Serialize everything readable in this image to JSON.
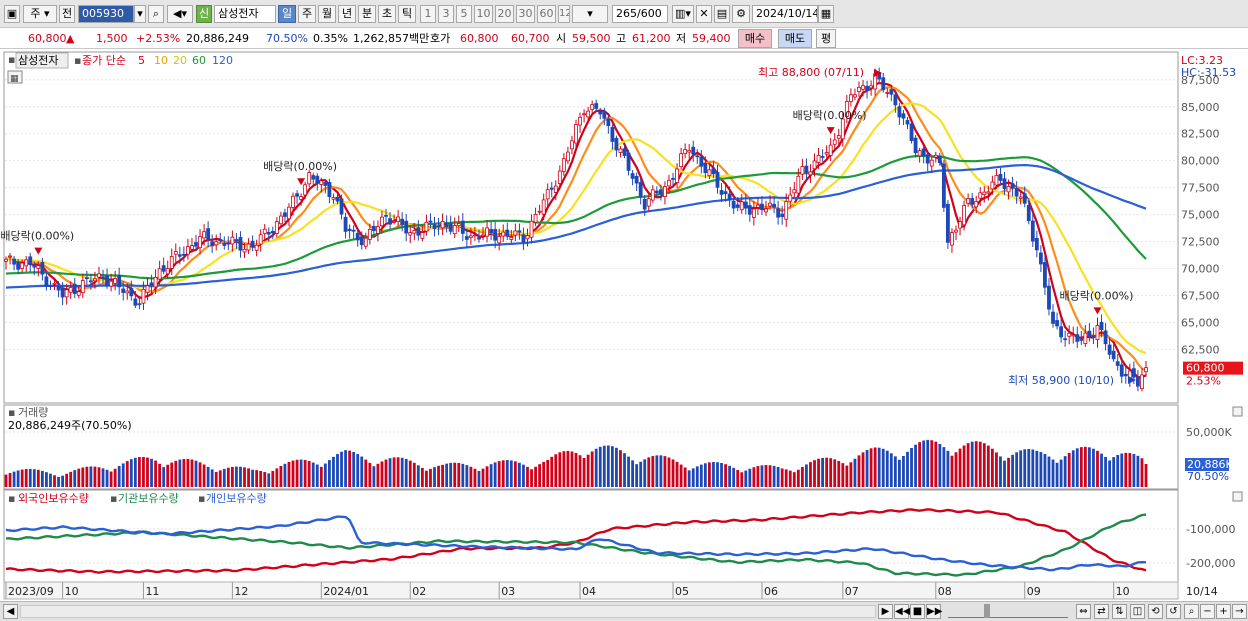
{
  "toolbar": {
    "market": "주",
    "period_mode": "전",
    "code": "005930",
    "tag": "신",
    "name": "삼성전자",
    "periods": [
      "일",
      "주",
      "월",
      "년",
      "분",
      "초",
      "틱"
    ],
    "active_period": "일",
    "intervals": [
      "1",
      "3",
      "5",
      "10",
      "20",
      "30",
      "60",
      "120"
    ],
    "count": "265/600",
    "date": "2024/10/14"
  },
  "quote": {
    "price": "60,800",
    "arrow": "▲",
    "change": "1,500",
    "change_pct": "+2.53%",
    "volume": "20,886,249",
    "volume_ratio": "70.50%",
    "turnover_pct": "0.35%",
    "amount": "1,262,857백만",
    "bid_label": "호가",
    "ask": "60,800",
    "bid": "60,700",
    "open_label": "시",
    "open": "59,500",
    "high_label": "고",
    "high": "61,200",
    "low_label": "저",
    "low": "59,400",
    "buy_btn": "매수",
    "sell_btn": "매도",
    "eval_btn": "평"
  },
  "legend": {
    "stock": "삼성전자",
    "ma_label": "종가 단순",
    "ma_periods": [
      "5",
      "10",
      "20",
      "60",
      "120"
    ],
    "ma_colors": [
      "#d0021b",
      "#ff8c1a",
      "#f7e21f",
      "#1f9a3a",
      "#2a5fd6"
    ]
  },
  "chart_data": [
    {
      "type": "candlestick",
      "panel": "price",
      "y_ticks": [
        "87,500",
        "85,000",
        "82,500",
        "80,000",
        "77,500",
        "75,000",
        "72,500",
        "70,000",
        "67,500",
        "65,000",
        "62,500"
      ],
      "ylim": [
        57800,
        89800
      ],
      "x_ticks": [
        "2023/09",
        "10",
        "11",
        "12",
        "2024/01",
        "02",
        "03",
        "04",
        "05",
        "06",
        "07",
        "08",
        "09",
        "10",
        "10/14"
      ],
      "lc": "LC:3.23",
      "hc": "HC:-31.53",
      "last_price": "60,800",
      "last_change": "2.53%",
      "annotations": [
        {
          "text": "배당락(0.00%)",
          "date": "2023-09-26"
        },
        {
          "text": "배당락(0.00%)",
          "date": "2023-12-26"
        },
        {
          "text": "배당락(0.00%)",
          "date": "2024-06-26"
        },
        {
          "text": "배당락(0.00%)",
          "date": "2024-09-26"
        }
      ],
      "high_label": "최고 88,800 (07/11)",
      "low_label": "최저 58,900 (10/10)",
      "anchors": [
        [
          "2023-09-14",
          70600
        ],
        [
          "2023-09-22",
          70500
        ],
        [
          "2023-10-04",
          67500
        ],
        [
          "2023-10-11",
          68600
        ],
        [
          "2023-10-18",
          69300
        ],
        [
          "2023-10-31",
          66900
        ],
        [
          "2023-11-07",
          69800
        ],
        [
          "2023-11-21",
          72800
        ],
        [
          "2023-12-08",
          72000
        ],
        [
          "2023-12-20",
          75000
        ],
        [
          "2023-12-28",
          78500
        ],
        [
          "2024-01-05",
          77000
        ],
        [
          "2024-01-10",
          73600
        ],
        [
          "2024-01-17",
          72600
        ],
        [
          "2024-01-24",
          75000
        ],
        [
          "2024-02-01",
          73300
        ],
        [
          "2024-02-13",
          74200
        ],
        [
          "2024-02-22",
          73000
        ],
        [
          "2024-03-04",
          73200
        ],
        [
          "2024-03-12",
          72900
        ],
        [
          "2024-03-20",
          76800
        ],
        [
          "2024-03-26",
          79800
        ],
        [
          "2024-04-02",
          85000
        ],
        [
          "2024-04-08",
          84500
        ],
        [
          "2024-04-16",
          80000
        ],
        [
          "2024-04-23",
          76100
        ],
        [
          "2024-04-30",
          77500
        ],
        [
          "2024-05-08",
          81300
        ],
        [
          "2024-05-16",
          78200
        ],
        [
          "2024-05-24",
          75500
        ],
        [
          "2024-06-03",
          75700
        ],
        [
          "2024-06-10",
          75200
        ],
        [
          "2024-06-17",
          79000
        ],
        [
          "2024-06-26",
          81000
        ],
        [
          "2024-07-03",
          86000
        ],
        [
          "2024-07-11",
          87600
        ],
        [
          "2024-07-18",
          85500
        ],
        [
          "2024-07-25",
          81000
        ],
        [
          "2024-08-02",
          79600
        ],
        [
          "2024-08-06",
          72500
        ],
        [
          "2024-08-13",
          76000
        ],
        [
          "2024-08-23",
          78300
        ],
        [
          "2024-08-30",
          76600
        ],
        [
          "2024-09-05",
          72000
        ],
        [
          "2024-09-11",
          64500
        ],
        [
          "2024-09-20",
          63200
        ],
        [
          "2024-09-26",
          64700
        ],
        [
          "2024-10-02",
          61300
        ],
        [
          "2024-10-10",
          59300
        ],
        [
          "2024-10-14",
          60800
        ]
      ]
    },
    {
      "type": "bar",
      "panel": "volume",
      "title": "거래량",
      "summary": "20,886,249주(70.50%)",
      "y_ticks": [
        "50,000K"
      ],
      "ylim": [
        0,
        60000000
      ],
      "last_value": "20,886K",
      "last_ratio": "70.50%",
      "anchors": [
        [
          "2023-09-14",
          15000000
        ],
        [
          "2023-10-04",
          12000000
        ],
        [
          "2023-11-06",
          25000000
        ],
        [
          "2023-12-08",
          14000000
        ],
        [
          "2024-01-10",
          28000000
        ],
        [
          "2024-02-13",
          18000000
        ],
        [
          "2024-03-20",
          22000000
        ],
        [
          "2024-04-02",
          35000000
        ],
        [
          "2024-05-08",
          20000000
        ],
        [
          "2024-06-10",
          16000000
        ],
        [
          "2024-07-11",
          30000000
        ],
        [
          "2024-08-06",
          38000000
        ],
        [
          "2024-09-05",
          28000000
        ],
        [
          "2024-10-02",
          32000000
        ],
        [
          "2024-10-14",
          20886249
        ]
      ]
    },
    {
      "type": "line",
      "panel": "holdings",
      "series": [
        {
          "name": "외국인보유수량",
          "color": "#d0021b",
          "values": [
            [
              0,
              -218000
            ],
            [
              0.08,
              -226000
            ],
            [
              0.2,
              -222000
            ],
            [
              0.34,
              -188000
            ],
            [
              0.4,
              -158000
            ],
            [
              0.47,
              -156000
            ],
            [
              0.5,
              -140000
            ],
            [
              0.53,
              -100000
            ],
            [
              0.6,
              -80000
            ],
            [
              0.66,
              -74000
            ],
            [
              0.75,
              -52000
            ],
            [
              0.8,
              -44000
            ],
            [
              0.87,
              -52000
            ],
            [
              0.93,
              -110000
            ],
            [
              0.97,
              -190000
            ],
            [
              1.0,
              -224000
            ]
          ]
        },
        {
          "name": "기관보유수량",
          "color": "#1f8a4c",
          "values": [
            [
              0,
              -130000
            ],
            [
              0.12,
              -110000
            ],
            [
              0.25,
              -140000
            ],
            [
              0.3,
              -156000
            ],
            [
              0.38,
              -136000
            ],
            [
              0.5,
              -140000
            ],
            [
              0.56,
              -170000
            ],
            [
              0.64,
              -198000
            ],
            [
              0.7,
              -190000
            ],
            [
              0.75,
              -200000
            ],
            [
              0.78,
              -230000
            ],
            [
              0.84,
              -235000
            ],
            [
              0.89,
              -210000
            ],
            [
              0.93,
              -160000
            ],
            [
              0.97,
              -90000
            ],
            [
              1.0,
              -58000
            ]
          ]
        },
        {
          "name": "개인보유수량",
          "color": "#2a5fd6",
          "values": [
            [
              0,
              -105000
            ],
            [
              0.05,
              -95000
            ],
            [
              0.14,
              -115000
            ],
            [
              0.24,
              -92000
            ],
            [
              0.3,
              -62000
            ],
            [
              0.31,
              -140000
            ],
            [
              0.41,
              -152000
            ],
            [
              0.5,
              -160000
            ],
            [
              0.52,
              -128000
            ],
            [
              0.57,
              -170000
            ],
            [
              0.64,
              -175000
            ],
            [
              0.7,
              -172000
            ],
            [
              0.76,
              -158000
            ],
            [
              0.82,
              -190000
            ],
            [
              0.86,
              -206000
            ],
            [
              0.92,
              -220000
            ],
            [
              0.95,
              -205000
            ],
            [
              0.98,
              -210000
            ],
            [
              1.0,
              -196000
            ]
          ]
        }
      ],
      "y_ticks": [
        "-100,000",
        "-200,000"
      ],
      "ylim": [
        -250000,
        -30000
      ]
    }
  ]
}
